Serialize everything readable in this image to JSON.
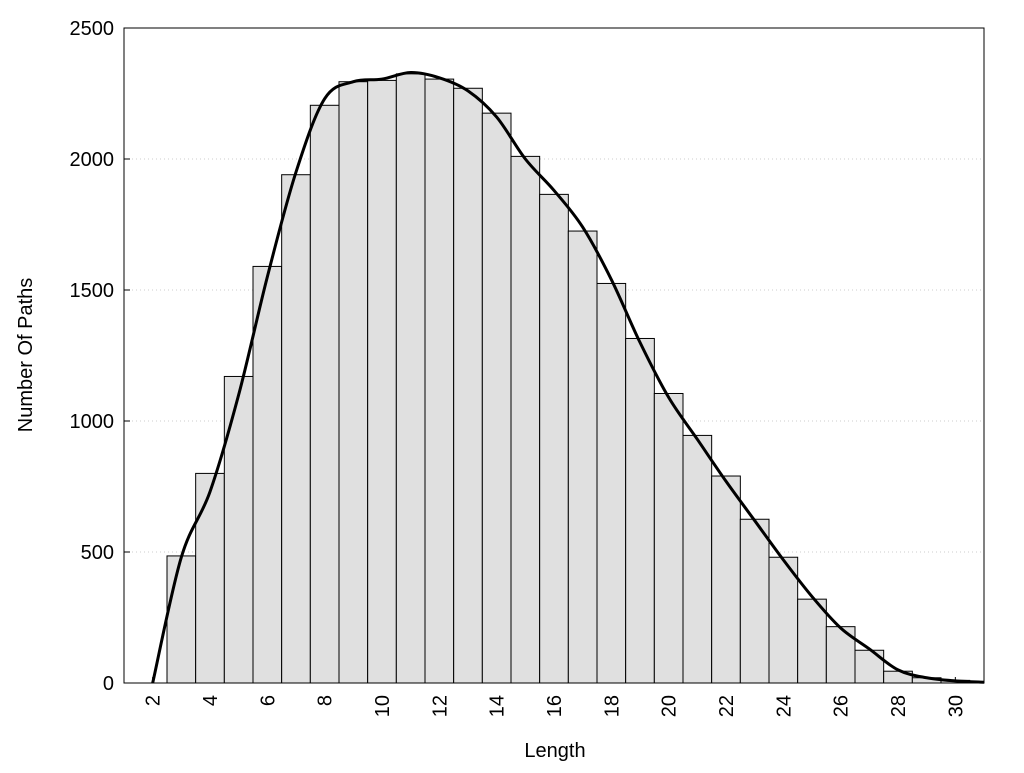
{
  "chart_data": {
    "type": "histogram",
    "x_label": "Length",
    "y_label": "Number Of Paths",
    "bins": [
      2.5,
      3.5,
      4.5,
      5.5,
      6.5,
      7.5,
      8.5,
      9.5,
      10.5,
      11.5,
      12.5,
      13.5,
      14.5,
      15.5,
      16.5,
      17.5,
      18.5,
      19.5,
      20.5,
      21.5,
      22.5,
      23.5,
      24.5,
      25.5,
      26.5,
      27.5,
      28.5,
      29.5,
      30.5
    ],
    "values": [
      485,
      800,
      1170,
      1590,
      1940,
      2205,
      2295,
      2300,
      2325,
      2305,
      2270,
      2175,
      2010,
      1865,
      1725,
      1525,
      1315,
      1105,
      945,
      790,
      625,
      480,
      320,
      215,
      125,
      45,
      20,
      10
    ],
    "color": "#e0e0e0",
    "curve": {
      "x": [
        2,
        3,
        4,
        5,
        6,
        7,
        8,
        9,
        10,
        11,
        12,
        13,
        14,
        15,
        16,
        17,
        18,
        19,
        20,
        21,
        22,
        23,
        24,
        25,
        26,
        27,
        28,
        29,
        30,
        31
      ],
      "values": [
        0,
        480,
        730,
        1100,
        1550,
        1950,
        2230,
        2295,
        2305,
        2330,
        2310,
        2260,
        2160,
        2000,
        1880,
        1740,
        1540,
        1300,
        1090,
        930,
        770,
        620,
        470,
        330,
        210,
        130,
        50,
        20,
        8,
        3
      ],
      "color": "#000000"
    },
    "xlim": [
      1,
      31
    ],
    "xticks": [
      2,
      4,
      6,
      8,
      10,
      12,
      14,
      16,
      18,
      20,
      22,
      24,
      26,
      28,
      30
    ],
    "ylim": [
      0,
      2500
    ],
    "yticks": [
      0,
      500,
      1000,
      1500,
      2000,
      2500
    ],
    "grid": true
  }
}
